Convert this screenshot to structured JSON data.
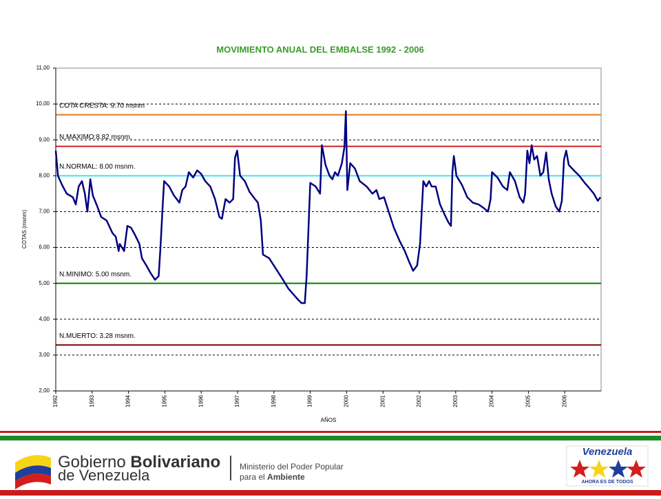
{
  "chart_data": {
    "type": "line",
    "title": "MOVIMIENTO ANUAL DEL EMBALSE 1992 - 2006",
    "x_label": "AÑOS",
    "y_label": "COTAS (msnm)",
    "xlim": [
      1992,
      2007
    ],
    "xticks": [
      1992,
      1993,
      1994,
      1995,
      1996,
      1997,
      1998,
      1999,
      2000,
      2001,
      2002,
      2003,
      2004,
      2005,
      2006
    ],
    "ylim": [
      2,
      11
    ],
    "yticks": [
      {
        "value": 2,
        "label": "2,00"
      },
      {
        "value": 3,
        "label": "3,00"
      },
      {
        "value": 4,
        "label": "4,00"
      },
      {
        "value": 5,
        "label": "5,00"
      },
      {
        "value": 6,
        "label": "6,00"
      },
      {
        "value": 7,
        "label": "7,00"
      },
      {
        "value": 8,
        "label": "8,00"
      },
      {
        "value": 9,
        "label": "9,00"
      },
      {
        "value": 10,
        "label": "10,00"
      },
      {
        "value": 11,
        "label": "11,00"
      }
    ],
    "grid": true,
    "reference_lines": [
      {
        "label": "COTA CRESTA: 9.70  msnm",
        "value": 9.7,
        "color": "#e07b20"
      },
      {
        "label": "N.MAXIMO:8.82 msnm.",
        "value": 8.82,
        "color": "#d42020"
      },
      {
        "label": "N.NORMAL: 8.00 msnm.",
        "value": 8.0,
        "color": "#40e0f0"
      },
      {
        "label": "N.MINIMO: 5.00 msnm.",
        "value": 5.0,
        "color": "#008000"
      },
      {
        "label": "N.MUERTO: 3.28 msnm.",
        "value": 3.28,
        "color": "#800000"
      }
    ],
    "series": [
      {
        "color": "#000080",
        "x": [
          1992.0,
          1992.06,
          1992.17,
          1992.3,
          1992.47,
          1992.55,
          1992.63,
          1992.72,
          1992.8,
          1992.87,
          1992.95,
          1993.02,
          1993.14,
          1993.25,
          1993.4,
          1993.56,
          1993.65,
          1993.73,
          1993.76,
          1993.88,
          1993.97,
          1994.07,
          1994.18,
          1994.3,
          1994.37,
          1994.49,
          1994.6,
          1994.73,
          1994.83,
          1994.88,
          1994.94,
          1994.98,
          1995.12,
          1995.25,
          1995.4,
          1995.48,
          1995.57,
          1995.66,
          1995.78,
          1995.89,
          1996.0,
          1996.11,
          1996.25,
          1996.38,
          1996.5,
          1996.57,
          1996.67,
          1996.78,
          1996.88,
          1996.93,
          1996.99,
          1997.07,
          1997.2,
          1997.33,
          1997.48,
          1997.56,
          1997.64,
          1997.7,
          1997.87,
          1998.06,
          1998.25,
          1998.4,
          1998.53,
          1998.66,
          1998.76,
          1998.85,
          1998.9,
          1999.0,
          1999.15,
          1999.27,
          1999.32,
          1999.42,
          1999.53,
          1999.61,
          1999.68,
          1999.76,
          1999.87,
          1999.94,
          1999.98,
          2000.02,
          2000.1,
          2000.23,
          2000.36,
          2000.55,
          2000.71,
          2000.82,
          2000.9,
          2001.03,
          2001.14,
          2001.3,
          2001.45,
          2001.6,
          2001.72,
          2001.83,
          2001.94,
          2002.02,
          2002.11,
          2002.19,
          2002.27,
          2002.34,
          2002.45,
          2002.57,
          2002.68,
          2002.8,
          2002.87,
          2002.91,
          2002.95,
          2003.02,
          2003.17,
          2003.32,
          2003.47,
          2003.63,
          2003.77,
          2003.89,
          2003.96,
          2004.0,
          2004.15,
          2004.3,
          2004.42,
          2004.49,
          2004.63,
          2004.76,
          2004.86,
          2004.91,
          2004.97,
          2005.03,
          2005.09,
          2005.16,
          2005.24,
          2005.33,
          2005.41,
          2005.49,
          2005.56,
          2005.64,
          2005.75,
          2005.85,
          2005.92,
          2005.98,
          2006.04,
          2006.11,
          2006.25,
          2006.4,
          2006.55,
          2006.68,
          2006.8,
          2006.91,
          2006.98
        ],
        "values": [
          8.7,
          8.0,
          7.75,
          7.5,
          7.4,
          7.2,
          7.7,
          7.85,
          7.5,
          7.0,
          7.9,
          7.45,
          7.15,
          6.85,
          6.75,
          6.4,
          6.3,
          5.9,
          6.1,
          5.9,
          6.6,
          6.55,
          6.35,
          6.1,
          5.7,
          5.5,
          5.3,
          5.1,
          5.2,
          6.0,
          7.15,
          7.85,
          7.7,
          7.45,
          7.25,
          7.6,
          7.7,
          8.1,
          7.95,
          8.15,
          8.05,
          7.85,
          7.7,
          7.35,
          6.85,
          6.8,
          7.35,
          7.25,
          7.35,
          8.5,
          8.7,
          8.0,
          7.85,
          7.55,
          7.35,
          7.25,
          6.75,
          5.8,
          5.7,
          5.4,
          5.1,
          4.85,
          4.7,
          4.55,
          4.45,
          4.45,
          5.2,
          7.8,
          7.7,
          7.5,
          8.85,
          8.3,
          8.0,
          7.9,
          8.1,
          8.0,
          8.35,
          8.8,
          9.8,
          7.6,
          8.35,
          8.2,
          7.85,
          7.7,
          7.5,
          7.6,
          7.35,
          7.4,
          7.05,
          6.55,
          6.2,
          5.9,
          5.6,
          5.35,
          5.5,
          6.1,
          7.85,
          7.7,
          7.85,
          7.7,
          7.7,
          7.2,
          6.95,
          6.7,
          6.6,
          8.1,
          8.55,
          8.0,
          7.75,
          7.4,
          7.25,
          7.2,
          7.1,
          7.0,
          7.35,
          8.1,
          7.95,
          7.7,
          7.6,
          8.1,
          7.85,
          7.4,
          7.25,
          7.5,
          8.7,
          8.35,
          8.85,
          8.45,
          8.55,
          8.0,
          8.1,
          8.65,
          7.9,
          7.5,
          7.15,
          7.0,
          7.3,
          8.45,
          8.7,
          8.3,
          8.15,
          8.0,
          7.8,
          7.65,
          7.5,
          7.3,
          7.4
        ]
      }
    ]
  },
  "footer": {
    "gov_word1": "Gobierno",
    "gov_word2": "Bolivariano",
    "gov_line2": "de Venezuela",
    "ministry_line1": "Ministerio del Poder Popular",
    "ministry_line2a": "para el",
    "ministry_line2b": "Ambiente",
    "brand": "Venezuela",
    "brand_slogan": "AHORA ES DE TODOS"
  }
}
